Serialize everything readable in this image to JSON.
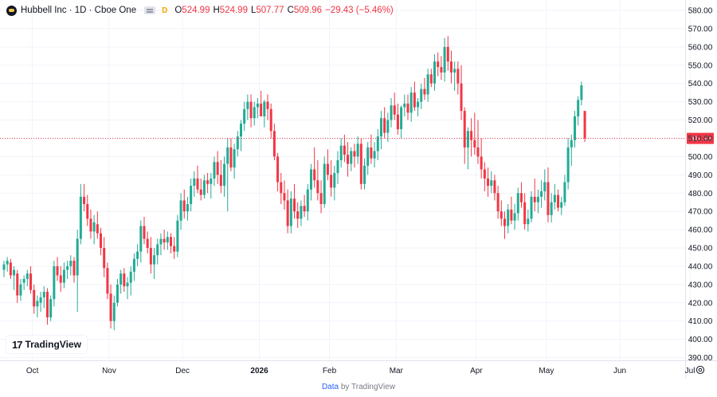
{
  "header": {
    "title": "Hubbell Inc · 1D · Cboe One",
    "badge": "D",
    "open_key": "O",
    "open": "524.99",
    "high_key": "H",
    "high": "524.99",
    "low_key": "L",
    "low": "507.77",
    "close_key": "C",
    "close": "509.96",
    "change": "−29.43 (−5.46%)"
  },
  "logo_text": "TradingView",
  "footer": {
    "data_word": "Data",
    "by_text": " by TradingView"
  },
  "colors": {
    "up": "#22ab94",
    "down": "#f23645",
    "grid": "#f0f3fa",
    "axis_text": "#131722",
    "last_price_line": "#f23645"
  },
  "chart_data": {
    "type": "candlestick",
    "title": "Hubbell Inc · 1D · Cboe One",
    "xlabel": "",
    "ylabel": "",
    "ylim": [
      385,
      585
    ],
    "y_ticks": [
      "580.00",
      "570.00",
      "560.00",
      "550.00",
      "540.00",
      "530.00",
      "520.00",
      "510.00",
      "500.00",
      "490.00",
      "480.00",
      "470.00",
      "460.00",
      "450.00",
      "440.00",
      "430.00",
      "420.00",
      "410.00",
      "400.00",
      "390.00"
    ],
    "x_ticks": [
      "Oct",
      "Nov",
      "Dec",
      "2026",
      "Feb",
      "Mar",
      "Apr",
      "May",
      "Jun",
      "Jul"
    ],
    "x_tick_index": [
      8.5,
      31.5,
      53.5,
      76.5,
      97.5,
      117.5,
      141.5,
      162.5,
      184.5,
      205.5
    ],
    "last_price": 509.96,
    "last_price_label": "509.96",
    "candles": [
      [
        438,
        443,
        434,
        441
      ],
      [
        441,
        445,
        437,
        443
      ],
      [
        442,
        444,
        433,
        435
      ],
      [
        435,
        440,
        427,
        438
      ],
      [
        436,
        438,
        420,
        424
      ],
      [
        424,
        433,
        421,
        430
      ],
      [
        431,
        435,
        427,
        433
      ],
      [
        433,
        438,
        429,
        436
      ],
      [
        436,
        440,
        425,
        427
      ],
      [
        427,
        430,
        414,
        418
      ],
      [
        418,
        424,
        412,
        421
      ],
      [
        420,
        426,
        415,
        423
      ],
      [
        423,
        429,
        417,
        426
      ],
      [
        426,
        428,
        408,
        412
      ],
      [
        412,
        424,
        410,
        422
      ],
      [
        422,
        443,
        418,
        440
      ],
      [
        440,
        445,
        432,
        435
      ],
      [
        435,
        440,
        426,
        431
      ],
      [
        431,
        442,
        428,
        438
      ],
      [
        438,
        443,
        433,
        440
      ],
      [
        440,
        446,
        435,
        443
      ],
      [
        443,
        445,
        431,
        435
      ],
      [
        435,
        460,
        415,
        455
      ],
      [
        455,
        485,
        452,
        478
      ],
      [
        478,
        485,
        470,
        474
      ],
      [
        474,
        479,
        462,
        466
      ],
      [
        466,
        471,
        455,
        459
      ],
      [
        459,
        468,
        452,
        464
      ],
      [
        463,
        470,
        455,
        458
      ],
      [
        458,
        461,
        446,
        450
      ],
      [
        450,
        456,
        434,
        439
      ],
      [
        439,
        442,
        422,
        425
      ],
      [
        425,
        430,
        406,
        410
      ],
      [
        410,
        424,
        405,
        420
      ],
      [
        420,
        433,
        418,
        430
      ],
      [
        430,
        438,
        425,
        436
      ],
      [
        436,
        439,
        426,
        429
      ],
      [
        429,
        434,
        422,
        431
      ],
      [
        431,
        440,
        424,
        437
      ],
      [
        437,
        447,
        432,
        444
      ],
      [
        444,
        452,
        440,
        448
      ],
      [
        448,
        465,
        442,
        462
      ],
      [
        462,
        467,
        452,
        455
      ],
      [
        455,
        459,
        447,
        450
      ],
      [
        450,
        456,
        436,
        441
      ],
      [
        441,
        450,
        433,
        446
      ],
      [
        446,
        455,
        441,
        452
      ],
      [
        452,
        458,
        446,
        455
      ],
      [
        455,
        460,
        449,
        453
      ],
      [
        453,
        459,
        449,
        456
      ],
      [
        456,
        458,
        447,
        451
      ],
      [
        451,
        456,
        444,
        448
      ],
      [
        448,
        468,
        445,
        465
      ],
      [
        465,
        480,
        460,
        476
      ],
      [
        476,
        482,
        466,
        470
      ],
      [
        470,
        478,
        465,
        474
      ],
      [
        474,
        488,
        470,
        484
      ],
      [
        484,
        492,
        478,
        488
      ],
      [
        488,
        495,
        480,
        482
      ],
      [
        482,
        488,
        476,
        479
      ],
      [
        479,
        490,
        477,
        487
      ],
      [
        487,
        491,
        480,
        485
      ],
      [
        485,
        491,
        477,
        488
      ],
      [
        488,
        500,
        484,
        497
      ],
      [
        497,
        503,
        485,
        490
      ],
      [
        490,
        498,
        480,
        484
      ],
      [
        484,
        500,
        478,
        496
      ],
      [
        496,
        510,
        470,
        505
      ],
      [
        505,
        510,
        492,
        494
      ],
      [
        494,
        507,
        488,
        504
      ],
      [
        504,
        514,
        500,
        511
      ],
      [
        511,
        520,
        503,
        518
      ],
      [
        518,
        530,
        514,
        526
      ],
      [
        526,
        534,
        520,
        530
      ],
      [
        530,
        534,
        516,
        521
      ],
      [
        521,
        530,
        517,
        527
      ],
      [
        527,
        532,
        521,
        529
      ],
      [
        529,
        536,
        524,
        522
      ],
      [
        522,
        531,
        516,
        530
      ],
      [
        530,
        534,
        520,
        526
      ],
      [
        526,
        529,
        510,
        514
      ],
      [
        514,
        518,
        498,
        500
      ],
      [
        500,
        502,
        481,
        486
      ],
      [
        486,
        491,
        474,
        480
      ],
      [
        480,
        487,
        471,
        476
      ],
      [
        476,
        482,
        458,
        462
      ],
      [
        462,
        481,
        458,
        477
      ],
      [
        477,
        485,
        466,
        470
      ],
      [
        470,
        475,
        461,
        466
      ],
      [
        466,
        476,
        462,
        473
      ],
      [
        473,
        479,
        467,
        470
      ],
      [
        470,
        485,
        465,
        482
      ],
      [
        482,
        496,
        476,
        493
      ],
      [
        493,
        505,
        483,
        487
      ],
      [
        487,
        498,
        476,
        480
      ],
      [
        480,
        487,
        469,
        474
      ],
      [
        474,
        500,
        472,
        496
      ],
      [
        496,
        504,
        487,
        490
      ],
      [
        490,
        498,
        478,
        483
      ],
      [
        483,
        495,
        476,
        491
      ],
      [
        491,
        503,
        485,
        498
      ],
      [
        498,
        510,
        494,
        506
      ],
      [
        506,
        512,
        497,
        501
      ],
      [
        501,
        508,
        489,
        496
      ],
      [
        496,
        505,
        492,
        503
      ],
      [
        503,
        507,
        494,
        500
      ],
      [
        500,
        511,
        496,
        507
      ],
      [
        507,
        510,
        482,
        485
      ],
      [
        485,
        499,
        482,
        495
      ],
      [
        495,
        508,
        490,
        505
      ],
      [
        505,
        512,
        496,
        499
      ],
      [
        499,
        508,
        494,
        503
      ],
      [
        503,
        515,
        498,
        511
      ],
      [
        511,
        525,
        504,
        521
      ],
      [
        521,
        527,
        510,
        513
      ],
      [
        513,
        524,
        508,
        520
      ],
      [
        520,
        532,
        516,
        528
      ],
      [
        528,
        535,
        520,
        523
      ],
      [
        523,
        529,
        512,
        515
      ],
      [
        515,
        528,
        510,
        527
      ],
      [
        527,
        534,
        522,
        529
      ],
      [
        529,
        534,
        520,
        524
      ],
      [
        524,
        538,
        519,
        535
      ],
      [
        535,
        541,
        525,
        527
      ],
      [
        527,
        532,
        522,
        530
      ],
      [
        530,
        540,
        526,
        537
      ],
      [
        537,
        543,
        531,
        534
      ],
      [
        534,
        548,
        530,
        545
      ],
      [
        545,
        548,
        538,
        540
      ],
      [
        540,
        556,
        536,
        552
      ],
      [
        552,
        557,
        544,
        549
      ],
      [
        549,
        555,
        542,
        546
      ],
      [
        546,
        565,
        541,
        560
      ],
      [
        560,
        566,
        547,
        552
      ],
      [
        552,
        558,
        540,
        546
      ],
      [
        546,
        552,
        536,
        548
      ],
      [
        548,
        552,
        534,
        540
      ],
      [
        540,
        550,
        520,
        525
      ],
      [
        525,
        527,
        496,
        505
      ],
      [
        505,
        516,
        493,
        514
      ],
      [
        514,
        521,
        500,
        509
      ],
      [
        509,
        524,
        501,
        505
      ],
      [
        505,
        520,
        496,
        500
      ],
      [
        500,
        510,
        488,
        493
      ],
      [
        493,
        497,
        481,
        488
      ],
      [
        488,
        494,
        478,
        484
      ],
      [
        484,
        492,
        480,
        487
      ],
      [
        487,
        490,
        476,
        480
      ],
      [
        480,
        484,
        466,
        470
      ],
      [
        470,
        476,
        462,
        466
      ],
      [
        466,
        470,
        455,
        462
      ],
      [
        462,
        474,
        458,
        471
      ],
      [
        471,
        478,
        463,
        465
      ],
      [
        465,
        474,
        460,
        469
      ],
      [
        469,
        483,
        465,
        480
      ],
      [
        480,
        486,
        472,
        475
      ],
      [
        475,
        480,
        460,
        463
      ],
      [
        463,
        471,
        459,
        466
      ],
      [
        466,
        481,
        464,
        478
      ],
      [
        478,
        488,
        470,
        475
      ],
      [
        475,
        482,
        469,
        478
      ],
      [
        478,
        487,
        472,
        481
      ],
      [
        481,
        493,
        476,
        486
      ],
      [
        486,
        494,
        464,
        468
      ],
      [
        468,
        480,
        464,
        475
      ],
      [
        475,
        485,
        471,
        479
      ],
      [
        479,
        482,
        470,
        472
      ],
      [
        472,
        478,
        468,
        475
      ],
      [
        475,
        490,
        473,
        486
      ],
      [
        486,
        510,
        482,
        505
      ],
      [
        505,
        512,
        495,
        509
      ],
      [
        509,
        525,
        505,
        522
      ],
      [
        522,
        533,
        517,
        531
      ],
      [
        531,
        541,
        528,
        539
      ],
      [
        525,
        525,
        508,
        510
      ]
    ]
  }
}
